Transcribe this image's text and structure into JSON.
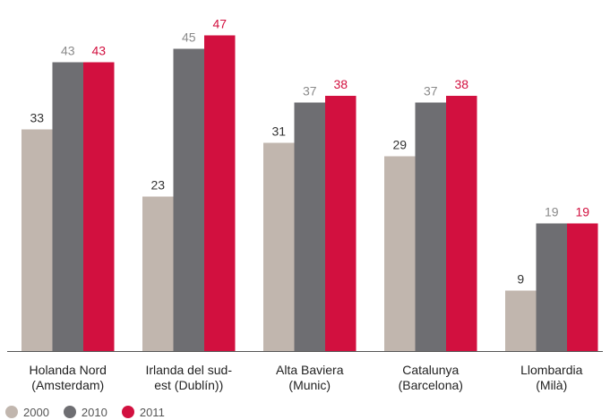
{
  "chart_data": {
    "type": "bar",
    "categories": [
      [
        "Holanda Nord",
        "(Amsterdam)"
      ],
      [
        "Irlanda del sud-",
        "est (Dublín))"
      ],
      [
        "Alta Baviera",
        "(Munic)"
      ],
      [
        "Catalunya",
        "(Barcelona)"
      ],
      [
        "Llombardia",
        "(Milà)"
      ]
    ],
    "series": [
      {
        "name": "2000",
        "values": [
          33,
          23,
          31,
          29,
          9
        ],
        "color": "#c1b6ae",
        "label_color": "#333333"
      },
      {
        "name": "2010",
        "values": [
          43,
          45,
          37,
          37,
          19
        ],
        "color": "#6e6e72",
        "label_color": "#8a8a8a"
      },
      {
        "name": "2011",
        "values": [
          43,
          47,
          38,
          38,
          19
        ],
        "color": "#d2103f",
        "label_color": "#d2103f"
      }
    ],
    "ylim": [
      0,
      50
    ],
    "grid": false,
    "legend_position": "bottom-left",
    "axis_color": "#555555"
  }
}
